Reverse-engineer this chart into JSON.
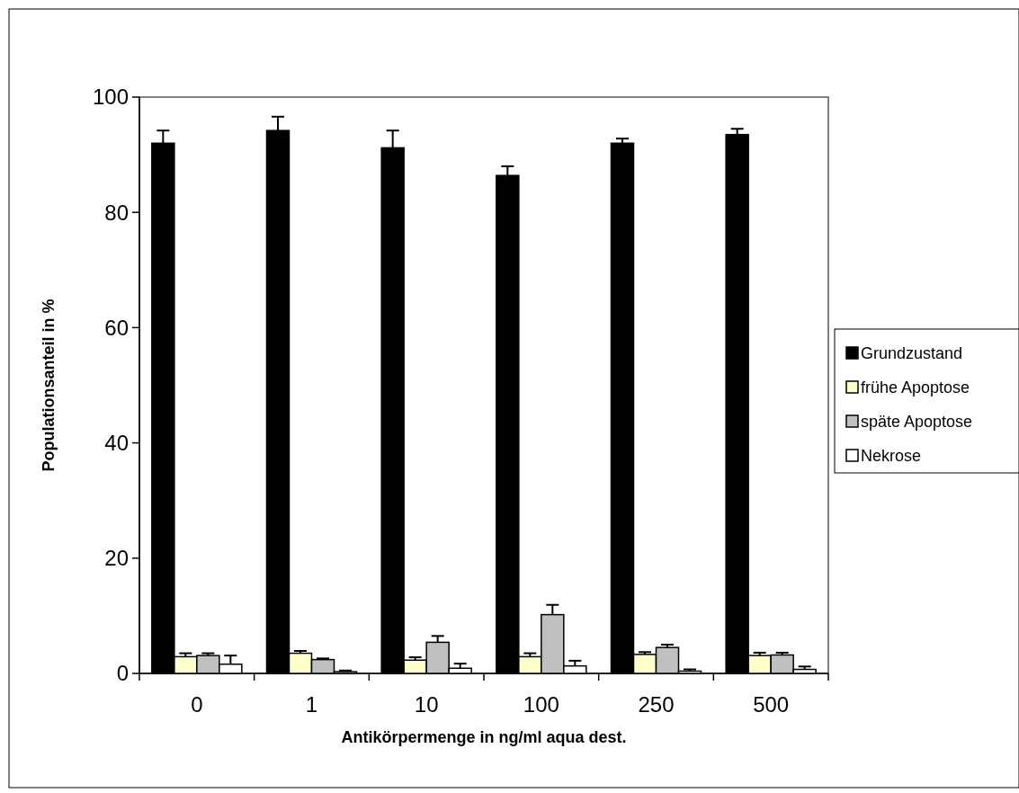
{
  "chart_data": {
    "type": "bar",
    "xlabel": "Antikörpermenge in ng/ml aqua dest.",
    "ylabel": "Populationsanteil in %",
    "categories": [
      "0",
      "1",
      "10",
      "100",
      "250",
      "500"
    ],
    "ylim": [
      0,
      100
    ],
    "yticks": [
      0,
      20,
      40,
      60,
      80,
      100
    ],
    "grid": false,
    "legend": "right",
    "series": [
      {
        "name": "Grundzustand",
        "color": "#000000",
        "values": [
          92,
          94.2,
          91.2,
          86.4,
          92,
          93.5
        ],
        "errors": [
          [
            92,
            94.2
          ],
          [
            94.2,
            96.6
          ],
          [
            91.2,
            94.2
          ],
          [
            86.4,
            88
          ],
          [
            92,
            92.8
          ],
          [
            93.5,
            94.5
          ]
        ]
      },
      {
        "name": "frühe Apoptose",
        "color": "#ffffcc",
        "values": [
          2.9,
          3.5,
          2.3,
          2.9,
          3.3,
          3.1
        ],
        "errors": [
          [
            2.9,
            3.5
          ],
          [
            3.5,
            3.9
          ],
          [
            2.3,
            2.8
          ],
          [
            2.9,
            3.5
          ],
          [
            3.3,
            3.7
          ],
          [
            3.1,
            3.6
          ]
        ]
      },
      {
        "name": "späte Apoptose",
        "color": "#c0c0c0",
        "values": [
          3.1,
          2.4,
          5.4,
          10.2,
          4.5,
          3.2
        ],
        "errors": [
          [
            3.1,
            3.5
          ],
          [
            2.4,
            2.6
          ],
          [
            5.4,
            6.5
          ],
          [
            10.2,
            11.9
          ],
          [
            4.5,
            5
          ],
          [
            3.2,
            3.6
          ]
        ]
      },
      {
        "name": "Nekrose",
        "color": "#ffffff",
        "values": [
          1.6,
          0.3,
          0.9,
          1.3,
          0.4,
          0.7
        ],
        "errors": [
          [
            1.6,
            3.1
          ],
          [
            0.3,
            0.5
          ],
          [
            0.9,
            1.7
          ],
          [
            1.3,
            2.2
          ],
          [
            0.4,
            0.7
          ],
          [
            0.7,
            1.2
          ]
        ]
      }
    ]
  }
}
